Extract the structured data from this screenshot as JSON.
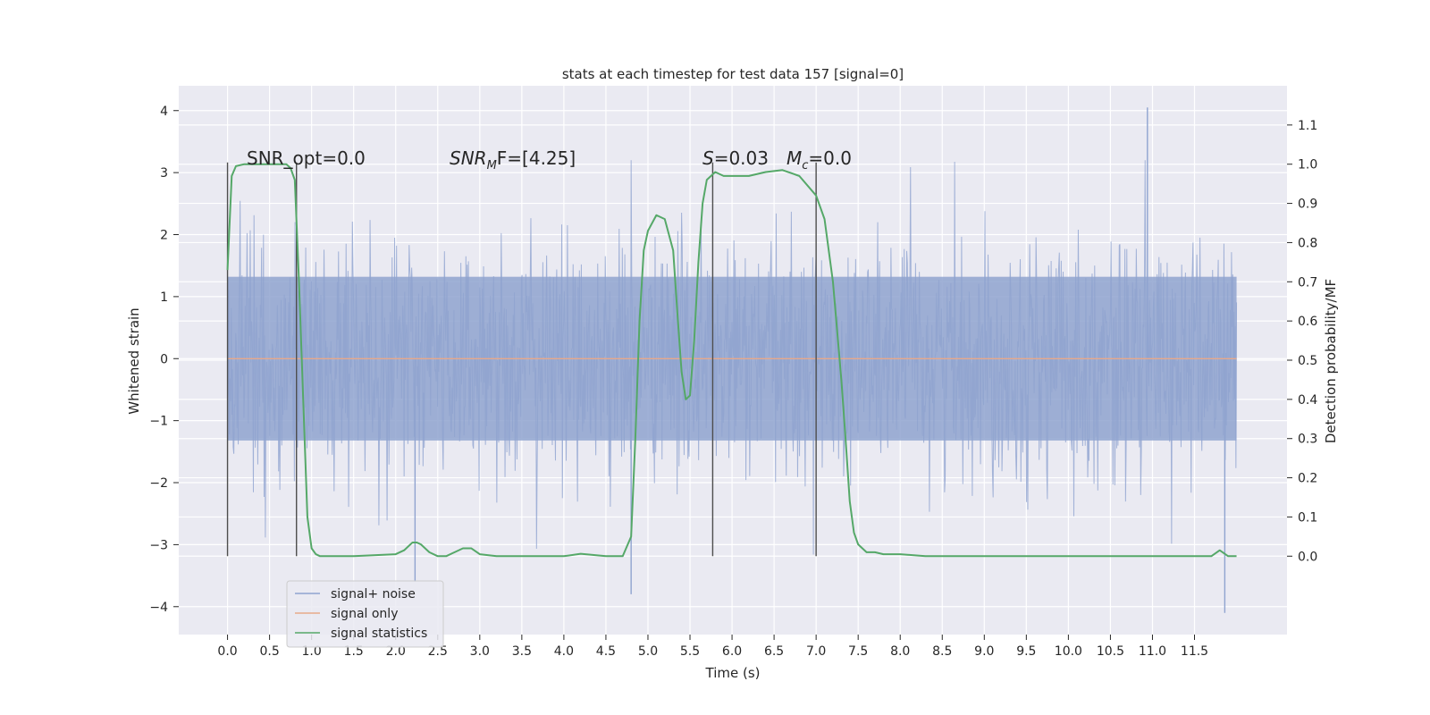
{
  "chart_data": {
    "type": "line",
    "title": "stats at each timestep for test data 157 [signal=0]",
    "xlabel": "Time (s)",
    "ylabel": "Whitened strain",
    "y2label": "Detection probability/MF",
    "xlim": [
      -0.58,
      12.6
    ],
    "ylim": [
      -4.45,
      4.4
    ],
    "y2lim": [
      -0.2,
      1.2
    ],
    "x_ticks": [
      "0.0",
      "0.5",
      "1.0",
      "1.5",
      "2.0",
      "2.5",
      "3.0",
      "3.5",
      "4.0",
      "4.5",
      "5.0",
      "5.5",
      "6.0",
      "6.5",
      "7.0",
      "7.5",
      "8.0",
      "8.5",
      "9.0",
      "9.5",
      "10.0",
      "10.5",
      "11.0",
      "11.5"
    ],
    "y_ticks": [
      "4",
      "3",
      "2",
      "1",
      "0",
      "−1",
      "−2",
      "−3",
      "−4"
    ],
    "y2_ticks": [
      "1.1",
      "1.0",
      "0.9",
      "0.8",
      "0.7",
      "0.6",
      "0.5",
      "0.4",
      "0.3",
      "0.2",
      "0.1",
      "0.0"
    ],
    "grid": true,
    "legend_position": "lower-left",
    "legend": [
      {
        "label": "signal+ noise",
        "color": "#8fa3cf"
      },
      {
        "label": "signal only",
        "color": "#e8a98a"
      },
      {
        "label": "signal statistics",
        "color": "#55a868"
      }
    ],
    "annotations": {
      "snr_opt": "SNR_opt=0.0",
      "snr_mf_main": "SNR",
      "snr_mf_sub": "M",
      "snr_mf_rest": "F=[4.25]",
      "s_main": "S",
      "s_rest": "=0.03",
      "mc_main": "M",
      "mc_sub": "c",
      "mc_rest": "=0.0"
    },
    "vertical_markers_x": [
      0.0,
      0.82,
      5.77,
      7.0
    ],
    "series": [
      {
        "name": "signal+ noise",
        "color": "#8fa3cf",
        "t_start": 0.0,
        "t_end": 12.0,
        "envelope_abs": 2.4,
        "extremes": [
          [
            10.94,
            4.05
          ],
          [
            11.86,
            -4.1
          ],
          [
            2.23,
            -3.6
          ],
          [
            4.8,
            -3.8
          ]
        ]
      },
      {
        "name": "signal only",
        "color": "#e8a98a",
        "x": [
          0.0,
          12.0
        ],
        "y": [
          0.0,
          0.0
        ]
      },
      {
        "name": "signal statistics",
        "color": "#55a868",
        "x": [
          0.0,
          0.05,
          0.1,
          0.2,
          0.3,
          0.5,
          0.7,
          0.75,
          0.8,
          0.85,
          0.9,
          0.95,
          1.0,
          1.05,
          1.1,
          1.2,
          1.5,
          2.0,
          2.1,
          2.2,
          2.25,
          2.3,
          2.4,
          2.5,
          2.6,
          2.8,
          2.9,
          3.0,
          3.2,
          3.5,
          4.0,
          4.2,
          4.5,
          4.7,
          4.8,
          4.85,
          4.9,
          4.95,
          5.0,
          5.1,
          5.2,
          5.3,
          5.35,
          5.4,
          5.45,
          5.5,
          5.55,
          5.6,
          5.65,
          5.7,
          5.8,
          5.9,
          6.0,
          6.2,
          6.4,
          6.6,
          6.8,
          7.0,
          7.1,
          7.2,
          7.3,
          7.35,
          7.4,
          7.45,
          7.5,
          7.6,
          7.7,
          7.8,
          8.0,
          8.3,
          8.5,
          9.0,
          10.0,
          11.0,
          11.5,
          11.7,
          11.8,
          11.9,
          12.0
        ],
        "y": [
          0.73,
          0.97,
          0.995,
          1.0,
          1.0,
          1.0,
          1.0,
          0.99,
          0.96,
          0.7,
          0.4,
          0.1,
          0.02,
          0.005,
          0.0,
          0.0,
          0.0,
          0.005,
          0.015,
          0.035,
          0.035,
          0.03,
          0.01,
          0.0,
          0.0,
          0.02,
          0.02,
          0.005,
          0.0,
          0.0,
          0.0,
          0.006,
          0.0,
          0.0,
          0.05,
          0.3,
          0.6,
          0.78,
          0.83,
          0.87,
          0.86,
          0.78,
          0.62,
          0.47,
          0.4,
          0.41,
          0.55,
          0.75,
          0.9,
          0.96,
          0.98,
          0.97,
          0.97,
          0.97,
          0.98,
          0.985,
          0.97,
          0.92,
          0.86,
          0.7,
          0.45,
          0.3,
          0.14,
          0.06,
          0.03,
          0.01,
          0.01,
          0.005,
          0.005,
          0.0,
          0.0,
          0.0,
          0.0,
          0.0,
          0.0,
          0.0,
          0.015,
          0.0,
          0.0
        ]
      }
    ]
  }
}
